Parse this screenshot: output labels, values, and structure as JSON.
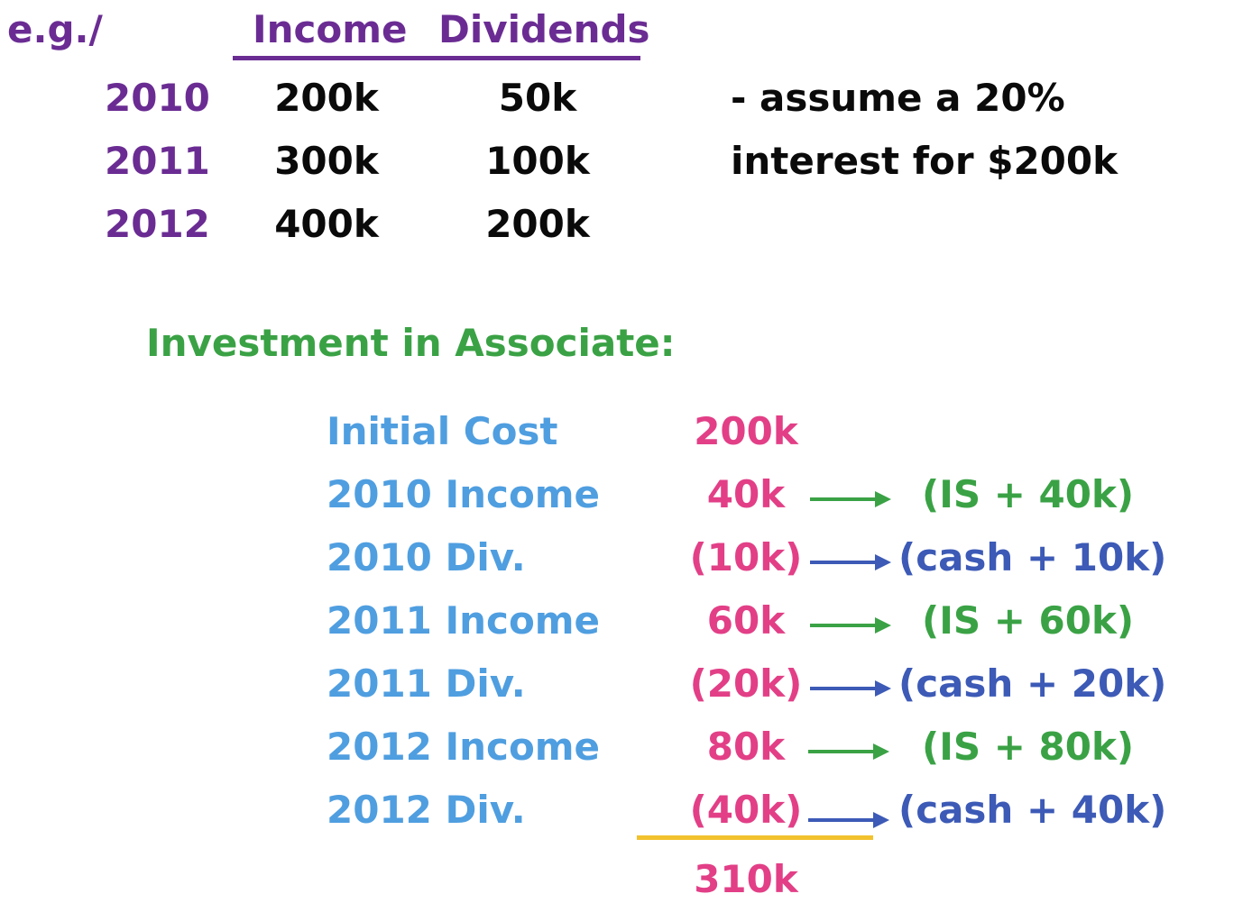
{
  "example": {
    "prefix": "e.g./",
    "headers": {
      "income": "Income",
      "dividends": "Dividends"
    },
    "rows": [
      {
        "year": "2010",
        "income": "200k",
        "dividends": "50k"
      },
      {
        "year": "2011",
        "income": "300k",
        "dividends": "100k"
      },
      {
        "year": "2012",
        "income": "400k",
        "dividends": "200k"
      }
    ],
    "note_line1": "- assume a 20%",
    "note_line2": "interest for $200k"
  },
  "investment": {
    "title": "Investment in Associate:",
    "entries": [
      {
        "label": "Initial Cost",
        "amount": "200k",
        "effect": ""
      },
      {
        "label": "2010 Income",
        "amount": "40k",
        "effect": "(IS + 40k)"
      },
      {
        "label": "2010 Div.",
        "amount": "(10k)",
        "effect": "(cash + 10k)"
      },
      {
        "label": "2011 Income",
        "amount": "60k",
        "effect": "(IS + 60k)"
      },
      {
        "label": "2011 Div.",
        "amount": "(20k)",
        "effect": "(cash + 20k)"
      },
      {
        "label": "2012 Income",
        "amount": "80k",
        "effect": "(IS + 80k)"
      },
      {
        "label": "2012 Div.",
        "amount": "(40k)",
        "effect": "(cash + 40k)"
      }
    ],
    "total": "310k"
  },
  "colors": {
    "year": "#6a2c93",
    "title": "#3aa245",
    "label": "#4f9ee0",
    "amount": "#e23f87",
    "income_effect": "#3aa245",
    "dividend_effect": "#3c5ab6",
    "total_rule": "#f2c12e"
  }
}
